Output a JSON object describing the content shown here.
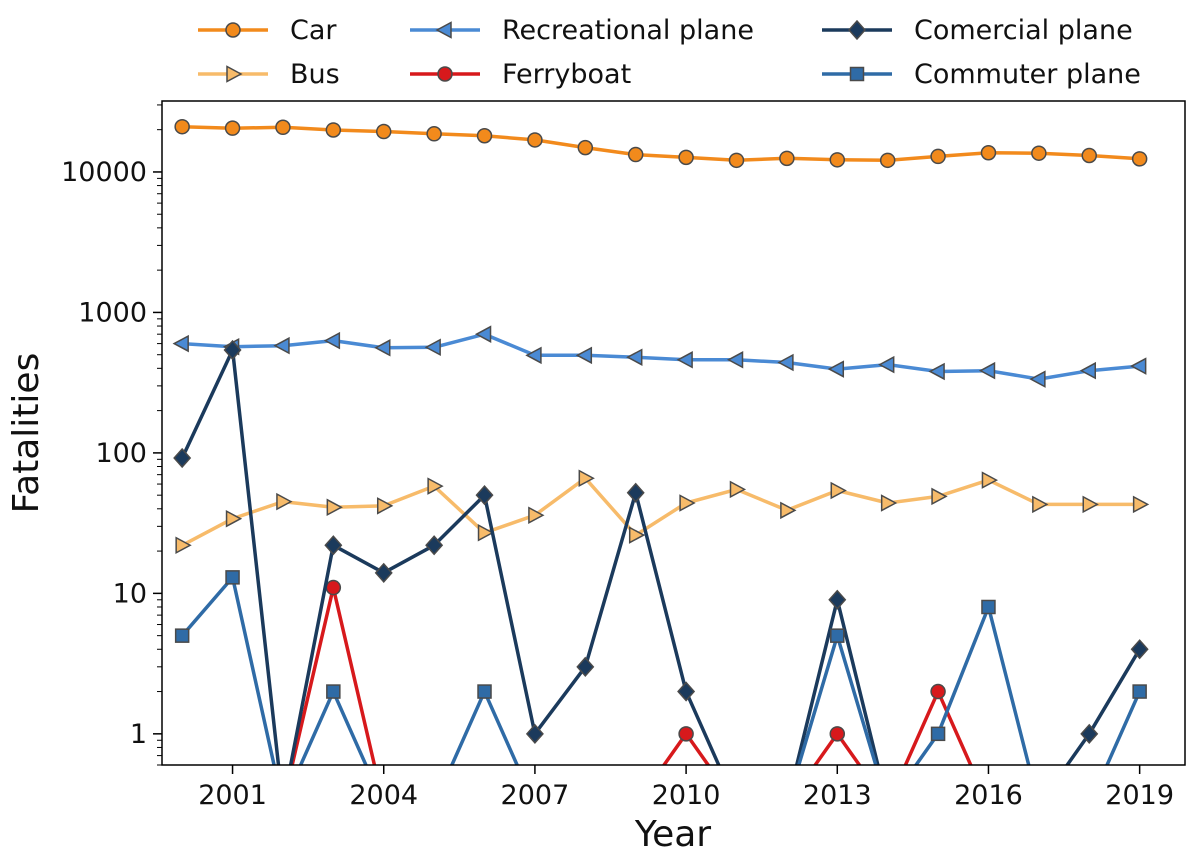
{
  "chart_data": {
    "type": "line",
    "xlabel": "Year",
    "ylabel": "Fatalities",
    "yscale": "log",
    "ylim": [
      0.6,
      32000
    ],
    "xlim": [
      1999.6,
      2019.9
    ],
    "xticks": [
      2001,
      2004,
      2007,
      2010,
      2013,
      2016,
      2019
    ],
    "yticks": [
      1,
      10,
      100,
      1000,
      10000
    ],
    "x": [
      2000,
      2001,
      2002,
      2003,
      2004,
      2005,
      2006,
      2007,
      2008,
      2009,
      2010,
      2011,
      2012,
      2013,
      2014,
      2015,
      2016,
      2017,
      2018,
      2019
    ],
    "legend_position": "top",
    "series": [
      {
        "name": "Car",
        "color": "#f28a1c",
        "marker": "circle",
        "values": [
          21000,
          20500,
          20800,
          19900,
          19400,
          18700,
          18100,
          16900,
          14900,
          13300,
          12700,
          12100,
          12500,
          12200,
          12100,
          12900,
          13700,
          13600,
          13100,
          12400
        ]
      },
      {
        "name": "Bus",
        "color": "#f7bb6a",
        "marker": "triangle-right",
        "values": [
          22,
          34,
          45,
          41,
          42,
          58,
          27,
          36,
          66,
          26,
          44,
          55,
          39,
          54,
          44,
          49,
          64,
          43,
          43,
          43
        ]
      },
      {
        "name": "Recreational plane",
        "color": "#4a8ad4",
        "marker": "triangle-left",
        "values": [
          600,
          570,
          580,
          630,
          560,
          565,
          700,
          495,
          495,
          480,
          460,
          460,
          440,
          395,
          425,
          380,
          385,
          335,
          385,
          415
        ]
      },
      {
        "name": "Ferryboat",
        "color": "#d7191c",
        "marker": "circle",
        "values": [
          0,
          0,
          0,
          11,
          0,
          0,
          0,
          0,
          0,
          0,
          1,
          0,
          0,
          1,
          0,
          2,
          0,
          0,
          0,
          0
        ]
      },
      {
        "name": "Comercial plane",
        "color": "#1b3a5c",
        "marker": "diamond",
        "values": [
          92,
          540,
          0,
          22,
          14,
          22,
          50,
          1,
          3,
          52,
          2,
          0,
          0,
          9,
          0,
          0,
          0,
          0,
          1,
          4
        ]
      },
      {
        "name": "Commuter plane",
        "color": "#2f6ba6",
        "marker": "square",
        "values": [
          5,
          13,
          0,
          2,
          0,
          0,
          2,
          0,
          0,
          0,
          0,
          0,
          0,
          5,
          0,
          1,
          8,
          0,
          0,
          2
        ]
      }
    ]
  }
}
